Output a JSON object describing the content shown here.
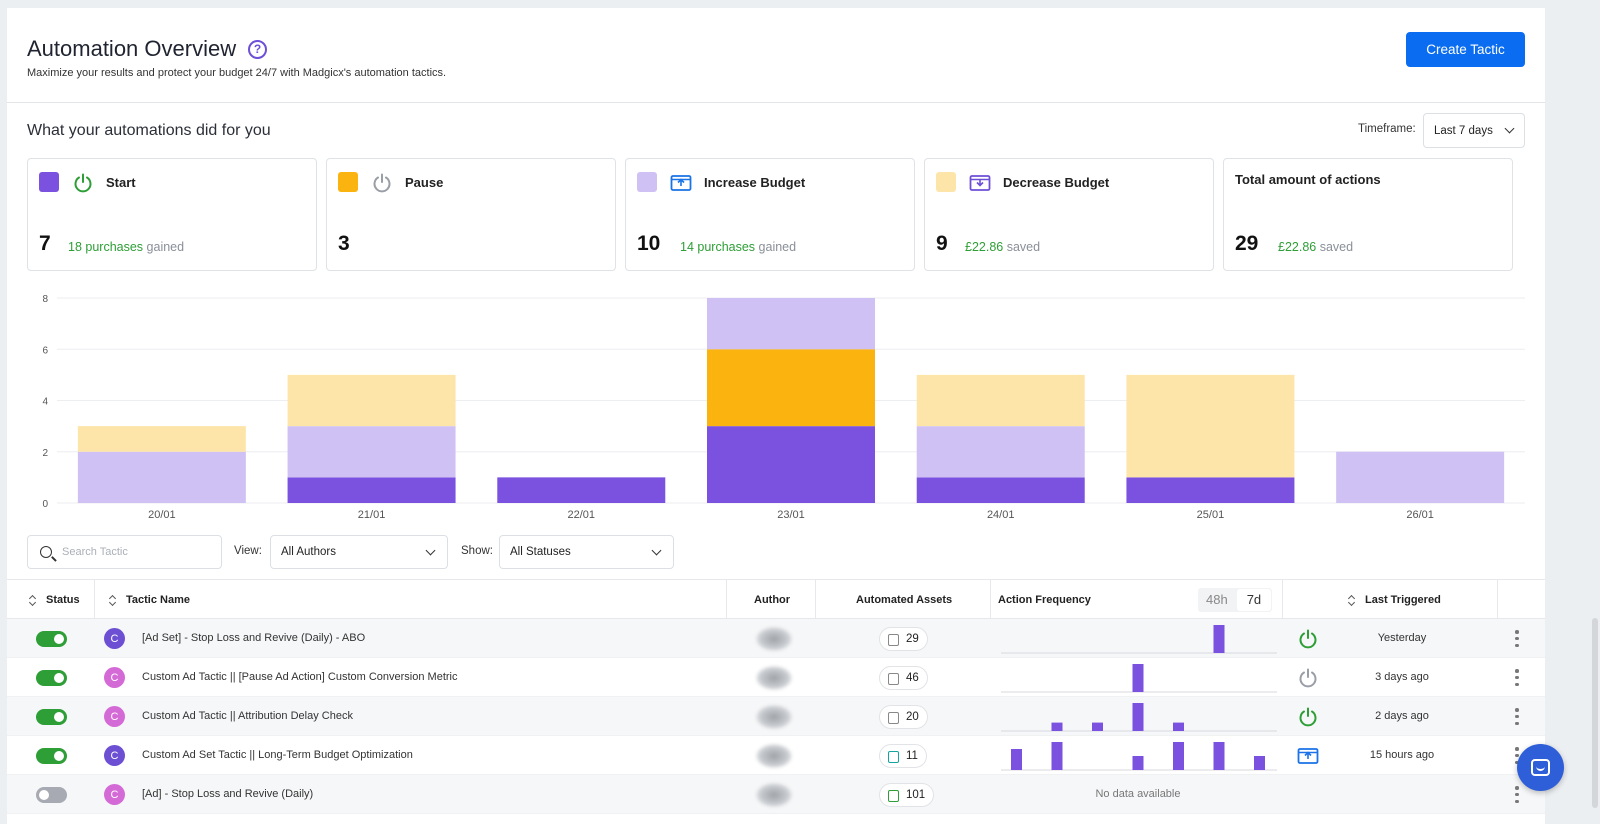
{
  "header": {
    "title": "Automation Overview",
    "help_symbol": "?",
    "subtitle": "Maximize your results and protect your budget 24/7 with Madgicx's automation tactics.",
    "create_button": "Create Tactic"
  },
  "summary": {
    "title": "What your automations did for you",
    "timeframe_label": "Timeframe:",
    "timeframe_value": "Last 7 days",
    "cards": [
      {
        "label": "Start",
        "value": "7",
        "note_highlight": "18 purchases",
        "note_rest": " gained",
        "color": "#7b52e0",
        "icon": "power-icon"
      },
      {
        "label": "Pause",
        "value": "3",
        "note_highlight": "",
        "note_rest": "",
        "color": "#fbb40f",
        "icon": "power-icon"
      },
      {
        "label": "Increase Budget",
        "value": "10",
        "note_highlight": "14 purchases",
        "note_rest": " gained",
        "color": "#cfc1f4",
        "icon": "budget-up-icon"
      },
      {
        "label": "Decrease Budget",
        "value": "9",
        "note_highlight": "£22.86",
        "note_rest": " saved",
        "color": "#fde5aa",
        "icon": "budget-down-icon"
      },
      {
        "label": "Total amount of actions",
        "value": "29",
        "note_highlight": "£22.86",
        "note_rest": " saved"
      }
    ]
  },
  "chart_data": {
    "type": "bar",
    "stacked": true,
    "categories": [
      "20/01",
      "21/01",
      "22/01",
      "23/01",
      "24/01",
      "25/01",
      "26/01"
    ],
    "series": [
      {
        "name": "Start",
        "color": "#7b52e0",
        "values": [
          0,
          1,
          1,
          3,
          1,
          1,
          0
        ]
      },
      {
        "name": "Increase Budget",
        "color": "#cfc1f4",
        "values": [
          2,
          2,
          0,
          2,
          2,
          0,
          2
        ]
      },
      {
        "name": "Decrease Budget",
        "color": "#fde5aa",
        "values": [
          1,
          2,
          0,
          0,
          2,
          4,
          0
        ]
      },
      {
        "name": "Pause",
        "color": "#fbb40f",
        "values": [
          0,
          0,
          0,
          3,
          0,
          0,
          0
        ]
      }
    ],
    "order": [
      "Start",
      "Pause",
      "Increase Budget",
      "Decrease Budget"
    ],
    "yticks": [
      0,
      2,
      4,
      6,
      8
    ],
    "ylim": [
      0,
      8
    ],
    "grid": true
  },
  "toolbar": {
    "search_placeholder": "Search Tactic",
    "view_label": "View:",
    "view_value": "All Authors",
    "show_label": "Show:",
    "show_value": "All Statuses"
  },
  "table": {
    "columns": {
      "status": "Status",
      "name": "Tactic Name",
      "author": "Author",
      "assets": "Automated Assets",
      "frequency": "Action Frequency",
      "last": "Last Triggered"
    },
    "freq_options": [
      "48h",
      "7d"
    ],
    "freq_selected": "7d",
    "rows": [
      {
        "enabled": true,
        "avatar": "C",
        "avatar_color": "#6c4fd2",
        "name": "[Ad Set] - Stop Loss and Revive (Daily) - ABO",
        "assets": "29",
        "asset_color": "gray",
        "freq": [
          0,
          0,
          0,
          0,
          0,
          1,
          0
        ],
        "trigger_icon": "power-on-icon",
        "last": "Yesterday"
      },
      {
        "enabled": true,
        "avatar": "C",
        "avatar_color": "#d46ad6",
        "name": "Custom Ad Tactic || [Pause Ad Action] Custom Conversion Metric",
        "assets": "46",
        "asset_color": "gray",
        "freq": [
          0,
          0,
          0,
          1,
          0,
          0,
          0
        ],
        "trigger_icon": "power-off-icon",
        "last": "3 days ago"
      },
      {
        "enabled": true,
        "avatar": "C",
        "avatar_color": "#d46ad6",
        "name": "Custom Ad Tactic || Attribution Delay Check",
        "assets": "20",
        "asset_color": "gray",
        "freq": [
          0,
          0.3,
          0.3,
          1,
          0.3,
          0,
          0
        ],
        "trigger_icon": "power-on-icon",
        "last": "2 days ago"
      },
      {
        "enabled": true,
        "avatar": "C",
        "avatar_color": "#6c4fd2",
        "name": "Custom Ad Set Tactic || Long-Term Budget Optimization",
        "assets": "11",
        "asset_color": "teal",
        "freq": [
          0.75,
          1,
          0,
          0.5,
          1,
          1,
          0.5
        ],
        "trigger_icon": "budget-up-icon",
        "last": "15 hours ago"
      },
      {
        "enabled": false,
        "avatar": "C",
        "avatar_color": "#d46ad6",
        "name": "[Ad] - Stop Loss and Revive (Daily)",
        "assets": "101",
        "asset_color": "green",
        "freq": null,
        "no_data": "No data available",
        "trigger_icon": "",
        "last": ""
      }
    ]
  }
}
